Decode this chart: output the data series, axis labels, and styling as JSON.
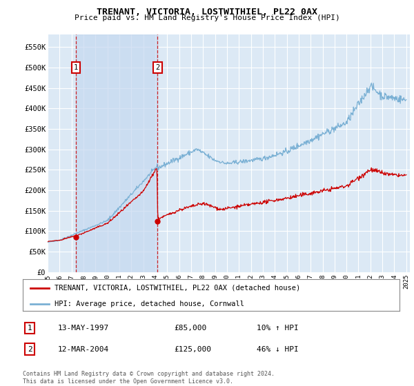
{
  "title": "TRENANT, VICTORIA, LOSTWITHIEL, PL22 0AX",
  "subtitle": "Price paid vs. HM Land Registry's House Price Index (HPI)",
  "ylabel_ticks": [
    "£0",
    "£50K",
    "£100K",
    "£150K",
    "£200K",
    "£250K",
    "£300K",
    "£350K",
    "£400K",
    "£450K",
    "£500K",
    "£550K"
  ],
  "ytick_values": [
    0,
    50000,
    100000,
    150000,
    200000,
    250000,
    300000,
    350000,
    400000,
    450000,
    500000,
    550000
  ],
  "ylim": [
    0,
    580000
  ],
  "xlim_start": 1995.0,
  "xlim_end": 2025.3,
  "background_color": "#dce9f5",
  "plot_bg_color": "#dce9f5",
  "grid_color": "#ffffff",
  "shade_color": "#c5d8f0",
  "legend_label_red": "TRENANT, VICTORIA, LOSTWITHIEL, PL22 0AX (detached house)",
  "legend_label_blue": "HPI: Average price, detached house, Cornwall",
  "red_color": "#cc0000",
  "blue_color": "#7ab0d4",
  "point1_x": 1997.37,
  "point1_y": 85000,
  "point1_label": "1",
  "point1_date": "13-MAY-1997",
  "point1_price": "£85,000",
  "point1_hpi": "10% ↑ HPI",
  "point2_x": 2004.2,
  "point2_y": 125000,
  "point2_label": "2",
  "point2_date": "12-MAR-2004",
  "point2_price": "£125,000",
  "point2_hpi": "46% ↓ HPI",
  "footer": "Contains HM Land Registry data © Crown copyright and database right 2024.\nThis data is licensed under the Open Government Licence v3.0.",
  "xtick_years": [
    1995,
    1996,
    1997,
    1998,
    1999,
    2000,
    2001,
    2002,
    2003,
    2004,
    2005,
    2006,
    2007,
    2008,
    2009,
    2010,
    2011,
    2012,
    2013,
    2014,
    2015,
    2016,
    2017,
    2018,
    2019,
    2020,
    2021,
    2022,
    2023,
    2024,
    2025
  ]
}
